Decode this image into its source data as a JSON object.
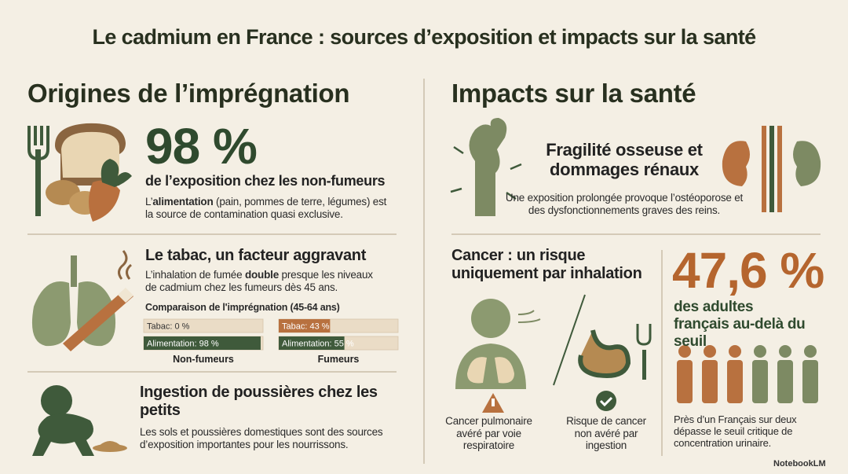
{
  "title": "Le cadmium en France : sources d’exposition et impacts sur la santé",
  "left": {
    "heading": "Origines de l’imprégnation",
    "diet": {
      "stat": "98 %",
      "caption": "de l’exposition chez les non-fumeurs",
      "text": [
        "L’",
        "alimentation",
        " (pain, pommes de terre, légumes) est la source de contamination quasi exclusive."
      ]
    },
    "tobacco": {
      "heading": "Le tabac, un facteur aggravant",
      "text": [
        "L’inhalation de fumée ",
        "double",
        " presque les niveaux de cadmium chez les fumeurs dès 45 ans."
      ],
      "chart": {
        "title": "Comparaison de l'imprégnation (45-64 ans)",
        "groups": [
          {
            "name": "Non-fumeurs",
            "bars": [
              {
                "value": 0,
                "label": "Tabac: 0 %",
                "color": "#b8713f"
              },
              {
                "value": 98,
                "label": "Alimentation: 98 %",
                "color": "#3f5a3b"
              }
            ]
          },
          {
            "name": "Fumeurs",
            "bars": [
              {
                "value": 43,
                "label": "Tabac: 43 %",
                "color": "#b8713f"
              },
              {
                "value": 55,
                "label": "Alimentation: 55 %",
                "color": "#3f5a3b"
              }
            ]
          }
        ]
      }
    },
    "dust": {
      "heading": "Ingestion de poussières chez les petits",
      "text": "Les sols et poussières domestiques sont des sources d’exposition importantes pour les nourrissons."
    }
  },
  "right": {
    "heading": "Impacts sur la santé",
    "bones": {
      "heading": "Fragilité osseuse et dommages rénaux",
      "text": "Une exposition prolongée provoque l’ostéoporose et des dysfonctionnements graves des reins."
    },
    "cancer": {
      "heading": "Cancer : un risque uniquement par inhalation",
      "lung": "Cancer pulmonaire avéré par voie respiratoire",
      "ingestion": "Risque de cancer non avéré par ingestion"
    },
    "adults": {
      "stat": "47,6 %",
      "caption": "des adultes français au-delà du seuil",
      "text": "Près d’un Français sur deux dépasse le seuil critique de concentration urinaire."
    }
  },
  "footer": "NotebookLM"
}
